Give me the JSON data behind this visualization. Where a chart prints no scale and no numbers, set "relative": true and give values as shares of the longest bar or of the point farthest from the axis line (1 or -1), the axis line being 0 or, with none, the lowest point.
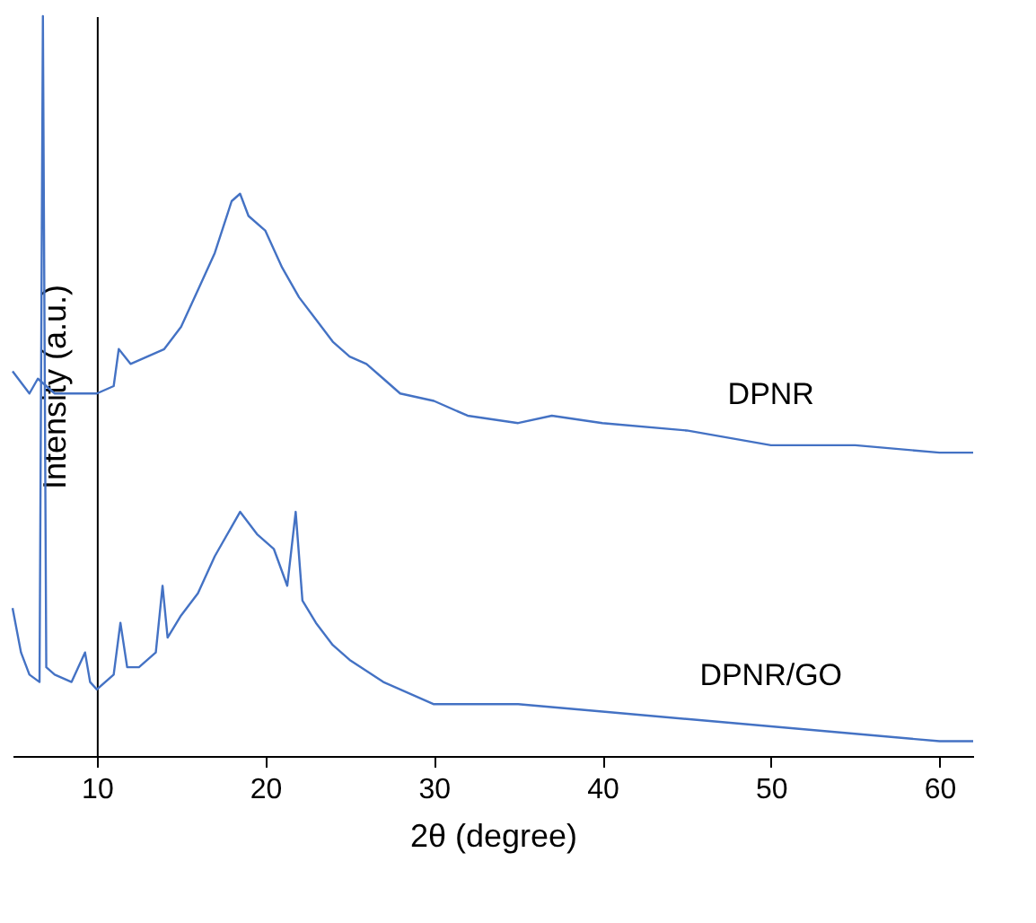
{
  "chart_data": {
    "type": "line",
    "relative": true,
    "xlabel": "2θ (degree)",
    "ylabel": "Intensity (a.u.)",
    "xlim": [
      5,
      62
    ],
    "xticks": [
      10,
      20,
      30,
      40,
      50,
      60
    ],
    "series": [
      {
        "name": "DPNR",
        "color": "#4472c4",
        "x": [
          5,
          6,
          6.5,
          7.5,
          8.5,
          9.5,
          10,
          11,
          11.3,
          12,
          13,
          14,
          15,
          16,
          17,
          18,
          18.5,
          19,
          20,
          21,
          22,
          23,
          24,
          25,
          26,
          27,
          28,
          30,
          32,
          35,
          37,
          40,
          45,
          50,
          55,
          60,
          62
        ],
        "values": [
          0.52,
          0.49,
          0.51,
          0.49,
          0.49,
          0.49,
          0.49,
          0.5,
          0.55,
          0.53,
          0.54,
          0.55,
          0.58,
          0.63,
          0.68,
          0.75,
          0.76,
          0.73,
          0.71,
          0.66,
          0.62,
          0.59,
          0.56,
          0.54,
          0.53,
          0.51,
          0.49,
          0.48,
          0.46,
          0.45,
          0.46,
          0.45,
          0.44,
          0.42,
          0.42,
          0.41,
          0.41
        ]
      },
      {
        "name": "DPNR/GO",
        "color": "#4472c4",
        "x": [
          5,
          5.5,
          6,
          6.6,
          6.8,
          7,
          7.5,
          8.5,
          9.3,
          9.6,
          10,
          11,
          11.4,
          11.8,
          12.5,
          13.5,
          13.9,
          14.2,
          15,
          16,
          17,
          18,
          18.5,
          19.5,
          20.5,
          21.3,
          21.8,
          22.2,
          23,
          24,
          25,
          27,
          30,
          35,
          40,
          45,
          50,
          55,
          60,
          62
        ],
        "values": [
          0.2,
          0.14,
          0.11,
          0.1,
          1,
          0.12,
          0.11,
          0.1,
          0.14,
          0.1,
          0.09,
          0.11,
          0.18,
          0.12,
          0.12,
          0.14,
          0.23,
          0.16,
          0.19,
          0.22,
          0.27,
          0.31,
          0.33,
          0.3,
          0.28,
          0.23,
          0.33,
          0.21,
          0.18,
          0.15,
          0.13,
          0.1,
          0.07,
          0.07,
          0.06,
          0.05,
          0.04,
          0.03,
          0.02,
          0.02
        ]
      }
    ]
  }
}
